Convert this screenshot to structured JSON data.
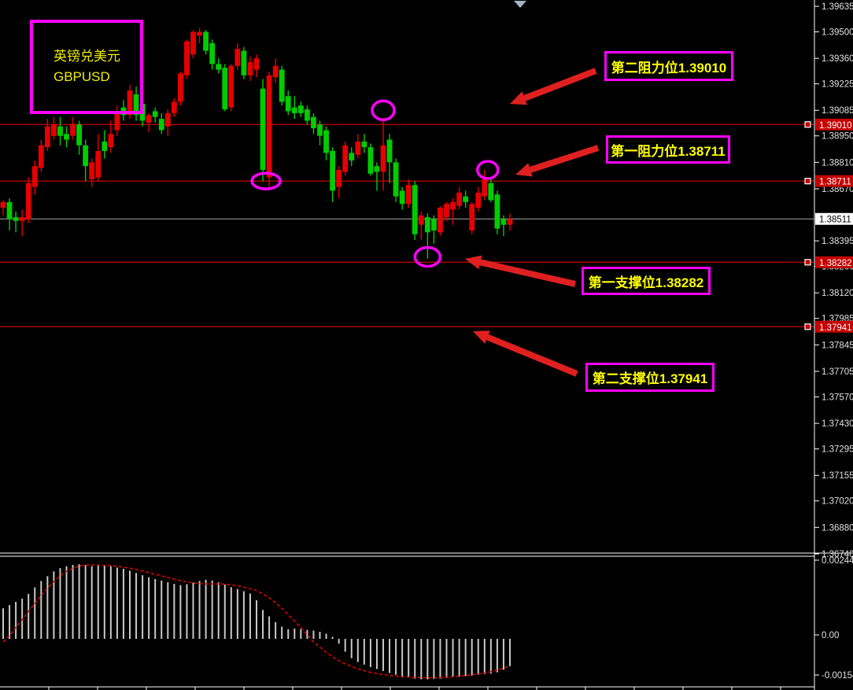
{
  "info_box": {
    "line1": "英镑兑美元",
    "line2": "GBPUSD"
  },
  "annotations": [
    {
      "text": "第二阻力位1.39010",
      "role": "resistance-2"
    },
    {
      "text": "第一阻力位1.38711",
      "role": "resistance-1"
    },
    {
      "text": "第一支撑位1.38282",
      "role": "support-1"
    },
    {
      "text": "第二支撑位1.37941",
      "role": "support-2"
    }
  ],
  "colors": {
    "background": "#000000",
    "bull_candle": "#e60000",
    "bear_candle": "#00cc00",
    "level_line": "#c40000",
    "current_line": "#a8a8a8",
    "tag_red_bg": "#c40000",
    "tag_white_bg": "#ffffff",
    "annotation_border": "#ff00ff",
    "annotation_text": "#ffff00",
    "arrow": "#e02020",
    "ellipse": "#ff00ff",
    "axis_text": "#e0e0e0",
    "macd_bar": "#c8c8c8",
    "macd_signal": "#e00000"
  },
  "chart_data": {
    "type": "candlestick",
    "symbol": "GBPUSD",
    "symbol_cn": "英镑兑美元",
    "color_convention": "red=up green=down",
    "price_axis": {
      "max": 1.39635,
      "min": 1.3674,
      "ticks": [
        "1.39635",
        "1.39500",
        "1.39360",
        "1.39225",
        "1.39085",
        "1.38950",
        "1.38810",
        "1.38670",
        "1.38395",
        "1.38260",
        "1.38120",
        "1.37985",
        "1.37845",
        "1.37705",
        "1.37570",
        "1.37430",
        "1.37295",
        "1.37155",
        "1.37020",
        "1.36880",
        "1.36740"
      ]
    },
    "levels": [
      {
        "label": "第二阻力位1.39010",
        "value": 1.3901,
        "tag": "1.39010",
        "kind": "resistance"
      },
      {
        "label": "第一阻力位1.38711",
        "value": 1.38711,
        "tag": "1.38711",
        "kind": "resistance"
      },
      {
        "label": "第一支撑位1.38282",
        "value": 1.38282,
        "tag": "1.38282",
        "kind": "support"
      },
      {
        "label": "第二支撑位1.37941",
        "value": 1.37941,
        "tag": "1.37941",
        "kind": "support"
      }
    ],
    "current_price": {
      "value": 1.38511,
      "tag": "1.38511"
    },
    "candles": [
      [
        1.3857,
        1.3861,
        1.3853,
        1.386
      ],
      [
        1.386,
        1.3862,
        1.3845,
        1.3851
      ],
      [
        1.3852,
        1.3855,
        1.3844,
        1.385
      ],
      [
        1.385,
        1.3856,
        1.3842,
        1.3852
      ],
      [
        1.3851,
        1.3873,
        1.3849,
        1.387
      ],
      [
        1.3868,
        1.3882,
        1.3864,
        1.3879
      ],
      [
        1.3878,
        1.3893,
        1.3876,
        1.389
      ],
      [
        1.3889,
        1.3904,
        1.3887,
        1.39
      ],
      [
        1.3895,
        1.3905,
        1.3893,
        1.3901
      ],
      [
        1.39,
        1.3905,
        1.389,
        1.3895
      ],
      [
        1.3896,
        1.39,
        1.3889,
        1.3893
      ],
      [
        1.3895,
        1.3905,
        1.3893,
        1.3901
      ],
      [
        1.3901,
        1.3903,
        1.3885,
        1.389
      ],
      [
        1.389,
        1.3893,
        1.3871,
        1.3879
      ],
      [
        1.3872,
        1.3883,
        1.3868,
        1.3881
      ],
      [
        1.3873,
        1.3896,
        1.3871,
        1.3887
      ],
      [
        1.3892,
        1.3898,
        1.3883,
        1.3887
      ],
      [
        1.3889,
        1.3903,
        1.3886,
        1.3896
      ],
      [
        1.3898,
        1.3911,
        1.3895,
        1.3907
      ],
      [
        1.391,
        1.3914,
        1.3903,
        1.3906
      ],
      [
        1.3906,
        1.3922,
        1.3904,
        1.3919
      ],
      [
        1.3917,
        1.3921,
        1.3903,
        1.3906
      ],
      [
        1.3912,
        1.3914,
        1.39,
        1.3903
      ],
      [
        1.3902,
        1.3907,
        1.3897,
        1.3906
      ],
      [
        1.3908,
        1.391,
        1.3902,
        1.3905
      ],
      [
        1.3904,
        1.3907,
        1.3896,
        1.3898
      ],
      [
        1.39,
        1.3909,
        1.3895,
        1.3907
      ],
      [
        1.3907,
        1.3915,
        1.3905,
        1.3913
      ],
      [
        1.3913,
        1.3929,
        1.3911,
        1.3928
      ],
      [
        1.3927,
        1.3946,
        1.3925,
        1.3945
      ],
      [
        1.3938,
        1.3951,
        1.3936,
        1.395
      ],
      [
        1.3948,
        1.3952,
        1.3944,
        1.395
      ],
      [
        1.395,
        1.3951,
        1.3938,
        1.394
      ],
      [
        1.3944,
        1.3946,
        1.393,
        1.3933
      ],
      [
        1.3933,
        1.3936,
        1.3928,
        1.393
      ],
      [
        1.3931,
        1.3933,
        1.3908,
        1.3909
      ],
      [
        1.391,
        1.3933,
        1.3908,
        1.3932
      ],
      [
        1.3932,
        1.3944,
        1.393,
        1.3941
      ],
      [
        1.394,
        1.3942,
        1.3925,
        1.3927
      ],
      [
        1.3927,
        1.3937,
        1.3924,
        1.3934
      ],
      [
        1.393,
        1.3938,
        1.3926,
        1.3936
      ],
      [
        1.392,
        1.3925,
        1.3871,
        1.3877
      ],
      [
        1.3873,
        1.3929,
        1.3868,
        1.3927
      ],
      [
        1.3926,
        1.3936,
        1.3923,
        1.3932
      ],
      [
        1.393,
        1.3932,
        1.3911,
        1.3913
      ],
      [
        1.3916,
        1.3919,
        1.3906,
        1.3908
      ],
      [
        1.391,
        1.3916,
        1.3904,
        1.3907
      ],
      [
        1.3911,
        1.3913,
        1.3905,
        1.3907
      ],
      [
        1.3909,
        1.3911,
        1.3901,
        1.3903
      ],
      [
        1.3905,
        1.3907,
        1.3896,
        1.3899
      ],
      [
        1.3901,
        1.3903,
        1.389,
        1.3895
      ],
      [
        1.3898,
        1.39,
        1.3882,
        1.3886
      ],
      [
        1.3887,
        1.3889,
        1.386,
        1.3866
      ],
      [
        1.3868,
        1.3879,
        1.3862,
        1.3877
      ],
      [
        1.3876,
        1.3892,
        1.3874,
        1.389
      ],
      [
        1.3886,
        1.3889,
        1.3879,
        1.3882
      ],
      [
        1.3885,
        1.3896,
        1.3883,
        1.3892
      ],
      [
        1.3892,
        1.3896,
        1.3886,
        1.3889
      ],
      [
        1.3889,
        1.3891,
        1.3874,
        1.3875
      ],
      [
        1.3879,
        1.3881,
        1.3866,
        1.3876
      ],
      [
        1.3876,
        1.39045,
        1.3866,
        1.389
      ],
      [
        1.3893,
        1.3896,
        1.387,
        1.3881
      ],
      [
        1.3881,
        1.3883,
        1.386,
        1.3863
      ],
      [
        1.3866,
        1.3868,
        1.3856,
        1.3859
      ],
      [
        1.3859,
        1.3872,
        1.3857,
        1.3869
      ],
      [
        1.3869,
        1.3871,
        1.384,
        1.3843
      ],
      [
        1.3848,
        1.3855,
        1.384,
        1.3853
      ],
      [
        1.3852,
        1.3854,
        1.383,
        1.3844
      ],
      [
        1.3851,
        1.3853,
        1.3838,
        1.3845
      ],
      [
        1.3844,
        1.3858,
        1.3842,
        1.3857
      ],
      [
        1.3852,
        1.386,
        1.385,
        1.3859
      ],
      [
        1.3856,
        1.3862,
        1.3848,
        1.386
      ],
      [
        1.3858,
        1.3868,
        1.3856,
        1.3865
      ],
      [
        1.3863,
        1.3866,
        1.3857,
        1.386
      ],
      [
        1.3845,
        1.386,
        1.3843,
        1.3859
      ],
      [
        1.3857,
        1.3868,
        1.3855,
        1.3865
      ],
      [
        1.3863,
        1.3877,
        1.3861,
        1.3872
      ],
      [
        1.387,
        1.3872,
        1.386,
        1.3861
      ],
      [
        1.3864,
        1.3866,
        1.3843,
        1.3846
      ],
      [
        1.3851,
        1.3853,
        1.3842,
        1.3848
      ],
      [
        1.3848,
        1.3854,
        1.3845,
        1.3851
      ]
    ],
    "circled_candles": [
      41,
      60,
      67,
      76
    ],
    "macd": {
      "axis_labels": {
        "max": "0.002448",
        "zero": "0.00",
        "min": "-0.001545"
      },
      "axis_values": {
        "max": 0.002448,
        "zero": 0.0,
        "min": -0.001545
      },
      "histogram": [
        0.00095,
        0.00105,
        0.00115,
        0.00125,
        0.0014,
        0.0016,
        0.0018,
        0.00195,
        0.0021,
        0.0022,
        0.00226,
        0.0023,
        0.00232,
        0.0023,
        0.00226,
        0.00228,
        0.0023,
        0.00226,
        0.00222,
        0.00218,
        0.00212,
        0.00205,
        0.00198,
        0.00192,
        0.00186,
        0.00181,
        0.00176,
        0.00171,
        0.00167,
        0.0017,
        0.00175,
        0.0018,
        0.00184,
        0.00181,
        0.00176,
        0.00169,
        0.00161,
        0.00155,
        0.00148,
        0.00141,
        0.0012,
        0.0009,
        0.0007,
        0.00052,
        0.00038,
        0.0003,
        0.00032,
        0.0003,
        0.00028,
        0.00026,
        0.00022,
        0.00016,
        6e-05,
        -0.00015,
        -0.0004,
        -0.0006,
        -0.00072,
        -0.0008,
        -0.00088,
        -0.00094,
        -0.001,
        -0.00106,
        -0.00112,
        -0.00117,
        -0.00121,
        -0.00124,
        -0.00126,
        -0.00126,
        -0.00125,
        -0.00124,
        -0.00122,
        -0.0012,
        -0.00118,
        -0.00116,
        -0.00114,
        -0.00112,
        -0.0011,
        -0.00108,
        -0.00104,
        -0.00096,
        -0.00085
      ],
      "signal": [
        -0.0001,
        0.0001,
        0.00035,
        0.0006,
        0.00085,
        0.0011,
        0.00135,
        0.00158,
        0.00178,
        0.00196,
        0.0021,
        0.0022,
        0.00226,
        0.00229,
        0.0023,
        0.0023,
        0.00229,
        0.00228,
        0.00226,
        0.00223,
        0.0022,
        0.00216,
        0.00211,
        0.00206,
        0.00201,
        0.00196,
        0.00191,
        0.00186,
        0.00181,
        0.00177,
        0.00174,
        0.00172,
        0.00171,
        0.00171,
        0.00171,
        0.0017,
        0.00168,
        0.00165,
        0.00161,
        0.00156,
        0.0015,
        0.0014,
        0.00128,
        0.00112,
        0.00095,
        0.00075,
        0.00055,
        0.00035,
        0.00012,
        -0.0001,
        -0.00026,
        -0.00042,
        -0.00056,
        -0.00068,
        -0.00078,
        -0.00086,
        -0.00093,
        -0.00099,
        -0.00104,
        -0.00108,
        -0.00111,
        -0.00114,
        -0.00116,
        -0.00118,
        -0.00119,
        -0.0012,
        -0.00121,
        -0.00121,
        -0.00121,
        -0.0012,
        -0.00119,
        -0.00118,
        -0.00116,
        -0.00114,
        -0.00112,
        -0.00109,
        -0.00106,
        -0.00102,
        -0.00097,
        -0.00091,
        -0.00084
      ]
    }
  }
}
